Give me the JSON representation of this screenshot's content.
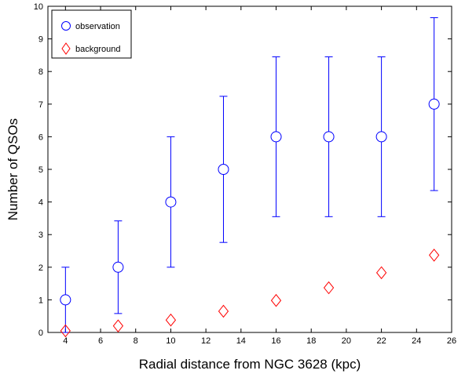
{
  "chart_data": {
    "type": "scatter",
    "title": "",
    "xlabel": "Radial distance from NGC 3628 (kpc)",
    "ylabel": "Number of QSOs",
    "xlim": [
      3,
      26
    ],
    "ylim": [
      0,
      10
    ],
    "xticks": [
      4,
      6,
      8,
      10,
      12,
      14,
      16,
      18,
      20,
      22,
      24,
      26
    ],
    "yticks": [
      0,
      1,
      2,
      3,
      4,
      5,
      6,
      7,
      8,
      9,
      10
    ],
    "grid": false,
    "legend_position": "top-left",
    "series": [
      {
        "name": "observation",
        "marker": "circle",
        "color": "#0000ff",
        "x": [
          4,
          7,
          10,
          13,
          16,
          19,
          22,
          25
        ],
        "y": [
          1,
          2,
          4,
          5,
          6,
          6,
          6,
          7
        ],
        "err_low": [
          0,
          0.58,
          2.0,
          2.76,
          3.55,
          3.55,
          3.55,
          4.35
        ],
        "err_high": [
          2.0,
          3.42,
          6.0,
          7.24,
          8.45,
          8.45,
          8.45,
          9.65
        ]
      },
      {
        "name": "background",
        "marker": "diamond",
        "color": "#ff0000",
        "x": [
          4,
          7,
          10,
          13,
          16,
          19,
          22,
          25
        ],
        "y": [
          0.05,
          0.2,
          0.38,
          0.65,
          0.98,
          1.37,
          1.83,
          2.37
        ]
      }
    ]
  }
}
